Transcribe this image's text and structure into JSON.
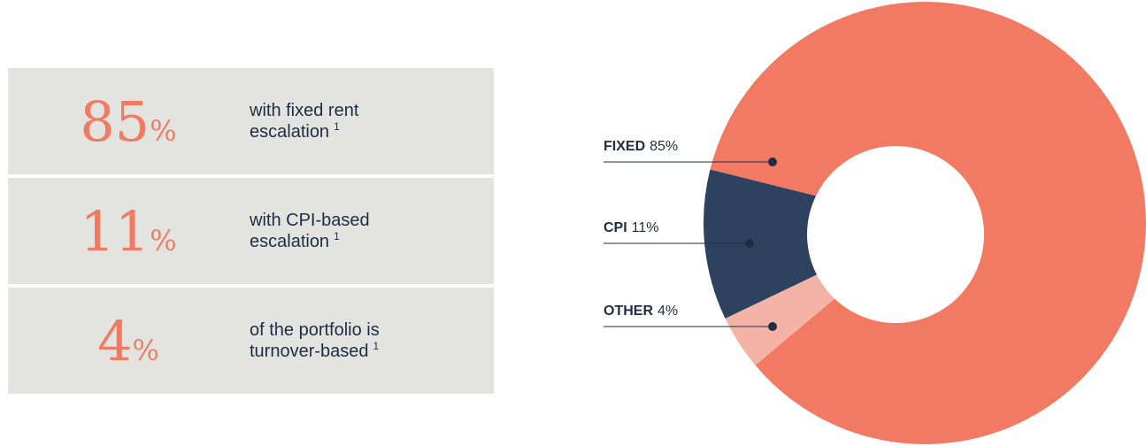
{
  "stats": [
    {
      "value": 85,
      "unit": "%",
      "text": [
        "with fixed rent",
        "escalation"
      ],
      "note": "1"
    },
    {
      "value": 11,
      "unit": "%",
      "text": [
        "with CPI-based",
        "escalation"
      ],
      "note": "1"
    },
    {
      "value": 4,
      "unit": "%",
      "text": [
        "of the portfolio is",
        "turnover-based"
      ],
      "note": "1"
    }
  ],
  "chart_data": {
    "type": "pie",
    "categories": [
      "FIXED",
      "CPI",
      "OTHER"
    ],
    "values": [
      85,
      11,
      4
    ],
    "value_labels": [
      "85%",
      "11%",
      "4%"
    ],
    "colors": [
      "#f27a63",
      "#2e4260",
      "#f5b3a5"
    ]
  }
}
